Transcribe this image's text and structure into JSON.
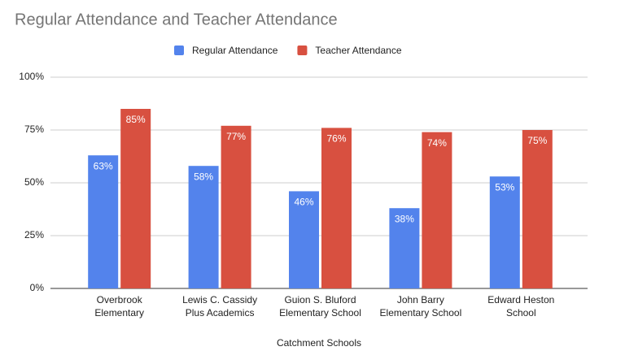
{
  "chart_data": {
    "type": "bar",
    "title": "Regular Attendance and Teacher Attendance",
    "x_label": "Catchment Schools",
    "categories": [
      [
        "Overbrook",
        "Elementary"
      ],
      [
        "Lewis C. Cassidy",
        "Plus Academics"
      ],
      [
        "Guion S. Bluford",
        "Elementary School"
      ],
      [
        "John Barry",
        "Elementary School"
      ],
      [
        "Edward Heston",
        "School"
      ]
    ],
    "series": [
      {
        "name": "Regular Attendance",
        "color": "#5383ec",
        "values": [
          63,
          58,
          46,
          38,
          53
        ],
        "value_labels": [
          "63%",
          "58%",
          "46%",
          "38%",
          "53%"
        ]
      },
      {
        "name": "Teacher Attendance",
        "color": "#d85040",
        "values": [
          85,
          77,
          76,
          74,
          75
        ],
        "value_labels": [
          "85%",
          "77%",
          "76%",
          "74%",
          "75%"
        ]
      }
    ],
    "ylim": [
      0,
      100
    ],
    "yticks": [
      {
        "value": 0,
        "label": "0%"
      },
      {
        "value": 25,
        "label": "25%"
      },
      {
        "value": 50,
        "label": "50%"
      },
      {
        "value": 75,
        "label": "75%"
      },
      {
        "value": 100,
        "label": "100%"
      }
    ],
    "grid": true,
    "legend": "top"
  }
}
